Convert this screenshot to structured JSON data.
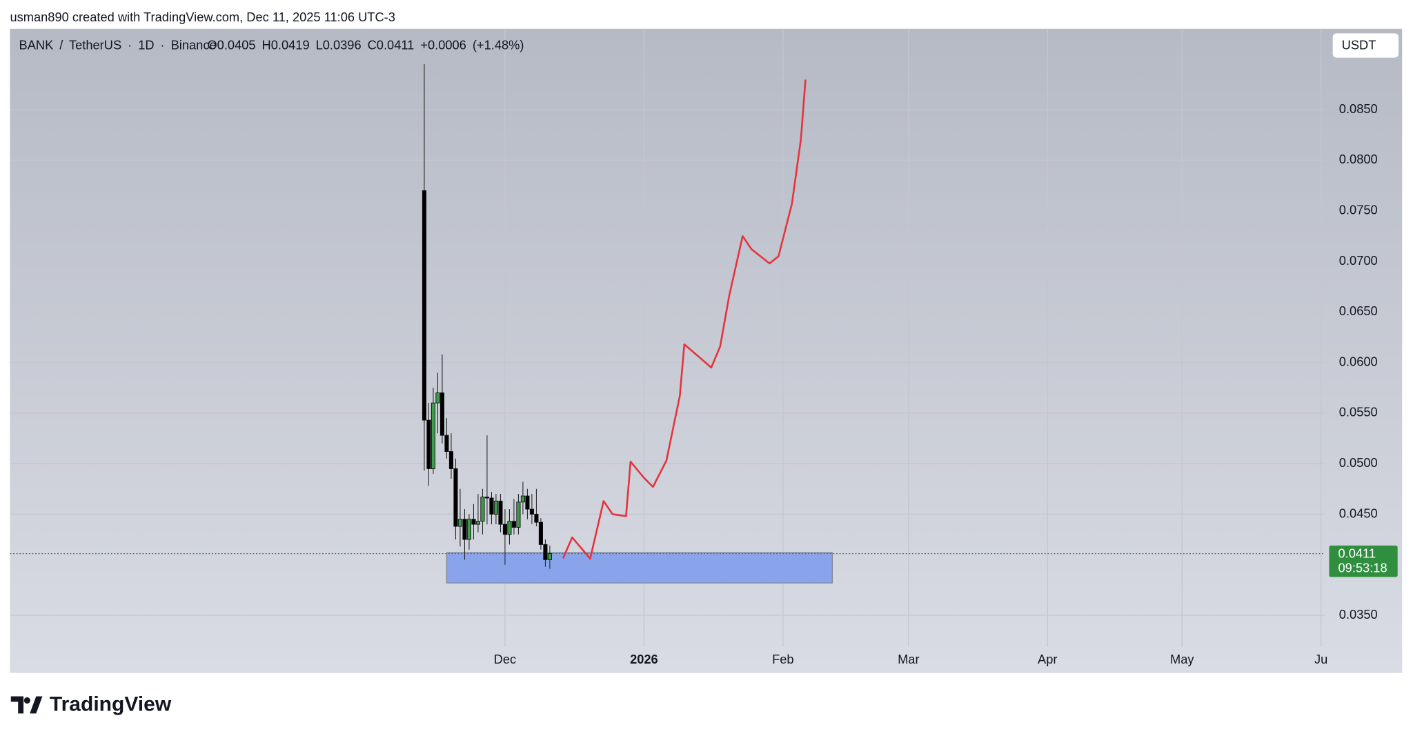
{
  "header": {
    "credit": "usman890 created with TradingView.com, Dec 11, 2025 11:06 UTC-3"
  },
  "chart_data": {
    "type": "candlestick",
    "symbol": "BANK / TetherUS · 1D · Binance",
    "ohlc_text": "O0.0405 H0.0419 L0.0396 C0.0411 +0.0006 (+1.48%)",
    "currency": "USDT",
    "x": [
      "2025-11-13",
      "2025-11-14",
      "2025-11-15",
      "2025-11-16",
      "2025-11-17",
      "2025-11-18",
      "2025-11-19",
      "2025-11-20",
      "2025-11-21",
      "2025-11-22",
      "2025-11-23",
      "2025-11-24",
      "2025-11-25",
      "2025-11-26",
      "2025-11-27",
      "2025-11-28",
      "2025-11-29",
      "2025-11-30",
      "2025-12-01",
      "2025-12-02",
      "2025-12-03",
      "2025-12-04",
      "2025-12-05",
      "2025-12-06",
      "2025-12-07",
      "2025-12-08",
      "2025-12-09",
      "2025-12-10",
      "2025-12-11"
    ],
    "open": [
      0.077,
      0.0543,
      0.0495,
      0.056,
      0.057,
      0.0528,
      0.0512,
      0.0495,
      0.0438,
      0.0445,
      0.0425,
      0.0445,
      0.044,
      0.0443,
      0.0467,
      0.0466,
      0.045,
      0.0463,
      0.044,
      0.043,
      0.0443,
      0.0437,
      0.0462,
      0.0468,
      0.0455,
      0.045,
      0.0442,
      0.042,
      0.0405
    ],
    "high": [
      0.0895,
      0.056,
      0.0575,
      0.059,
      0.0608,
      0.0545,
      0.053,
      0.0505,
      0.0475,
      0.0455,
      0.045,
      0.046,
      0.047,
      0.0475,
      0.0528,
      0.0472,
      0.047,
      0.047,
      0.0455,
      0.0455,
      0.0465,
      0.047,
      0.0482,
      0.0475,
      0.047,
      0.0475,
      0.0446,
      0.0425,
      0.0419
    ],
    "low": [
      0.0493,
      0.0478,
      0.049,
      0.053,
      0.052,
      0.0505,
      0.0485,
      0.0425,
      0.0418,
      0.0405,
      0.0415,
      0.0425,
      0.0432,
      0.043,
      0.044,
      0.044,
      0.044,
      0.0432,
      0.04,
      0.042,
      0.043,
      0.043,
      0.045,
      0.0445,
      0.044,
      0.0438,
      0.0415,
      0.0398,
      0.0396
    ],
    "close": [
      0.0543,
      0.0495,
      0.056,
      0.057,
      0.0528,
      0.0512,
      0.0495,
      0.0438,
      0.0445,
      0.0425,
      0.0445,
      0.044,
      0.0443,
      0.0467,
      0.0466,
      0.045,
      0.0463,
      0.044,
      0.043,
      0.0443,
      0.0437,
      0.0462,
      0.0468,
      0.0455,
      0.045,
      0.0442,
      0.042,
      0.0405,
      0.0411
    ],
    "up_color": "#3f9c4c",
    "down_color": "#000000",
    "projection": {
      "color": "#e5333f",
      "x": [
        "2025-12-14",
        "2025-12-16",
        "2025-12-20",
        "2025-12-23",
        "2025-12-25",
        "2025-12-28",
        "2025-12-29",
        "2026-01-01",
        "2026-01-03",
        "2026-01-06",
        "2026-01-09",
        "2026-01-10",
        "2026-01-16",
        "2026-01-18",
        "2026-01-20",
        "2026-01-23",
        "2026-01-25",
        "2026-01-29",
        "2026-01-31",
        "2026-02-03",
        "2026-02-04",
        "2026-02-05",
        "2026-02-06"
      ],
      "values": [
        0.0407,
        0.0427,
        0.0406,
        0.0463,
        0.045,
        0.0448,
        0.0502,
        0.0486,
        0.0477,
        0.0503,
        0.0567,
        0.0618,
        0.0595,
        0.0616,
        0.0666,
        0.0725,
        0.0712,
        0.0698,
        0.0705,
        0.0757,
        0.0789,
        0.0821,
        0.0879
      ]
    },
    "zone": {
      "color": "#8aa4ec",
      "x": [
        "2025-11-18",
        "2026-02-12"
      ],
      "values": [
        0.0382,
        0.0412
      ]
    },
    "last_price": {
      "value": 0.0411,
      "label": "0.0411",
      "countdown": "09:53:18",
      "color": "#2f8f3e"
    },
    "xlim": [
      "2025-08-13",
      "2026-06-01"
    ],
    "xticks": [
      {
        "value": "2025-12-01",
        "label": "Dec"
      },
      {
        "value": "2026-01-01",
        "label": "2026"
      },
      {
        "value": "2026-02-01",
        "label": "Feb"
      },
      {
        "value": "2026-03-01",
        "label": "Mar"
      },
      {
        "value": "2026-04-01",
        "label": "Apr"
      },
      {
        "value": "2026-05-01",
        "label": "May"
      },
      {
        "value": "2026-06-01",
        "label": "Ju"
      }
    ],
    "ylim": [
      0.0293,
      0.093
    ],
    "yticks": [
      {
        "value": 0.035,
        "label": "0.0350"
      },
      {
        "value": 0.045,
        "label": "0.0450"
      },
      {
        "value": 0.05,
        "label": "0.0500"
      },
      {
        "value": 0.055,
        "label": "0.0550"
      },
      {
        "value": 0.06,
        "label": "0.0600"
      },
      {
        "value": 0.065,
        "label": "0.0650"
      },
      {
        "value": 0.07,
        "label": "0.0700"
      },
      {
        "value": 0.075,
        "label": "0.0750"
      },
      {
        "value": 0.08,
        "label": "0.0800"
      },
      {
        "value": 0.085,
        "label": "0.0850"
      }
    ],
    "grid": true
  },
  "footer": {
    "brand": "TradingView"
  }
}
